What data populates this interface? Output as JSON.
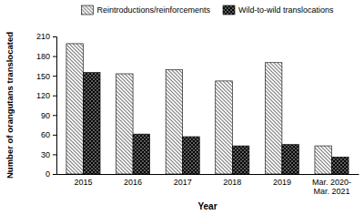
{
  "chart_data": {
    "type": "bar",
    "categories": [
      "2015",
      "2016",
      "2017",
      "2018",
      "2019",
      "Mar. 2020-Mar. 2021"
    ],
    "series": [
      {
        "name": "Reintroductions/reinforcements",
        "color": "#7f7f7f",
        "values": [
          199,
          153,
          159,
          142,
          170,
          43
        ]
      },
      {
        "name": "Wild-to-wild translocations",
        "color": "#000000",
        "values": [
          155,
          61,
          57,
          43,
          45,
          26
        ]
      }
    ],
    "x_label": "Year",
    "y_label": "Number of orangutans translocated",
    "ylim": [
      0,
      210
    ],
    "yticks": [
      0,
      30,
      60,
      90,
      120,
      150,
      180,
      210
    ],
    "grid": false,
    "legend": "top"
  }
}
